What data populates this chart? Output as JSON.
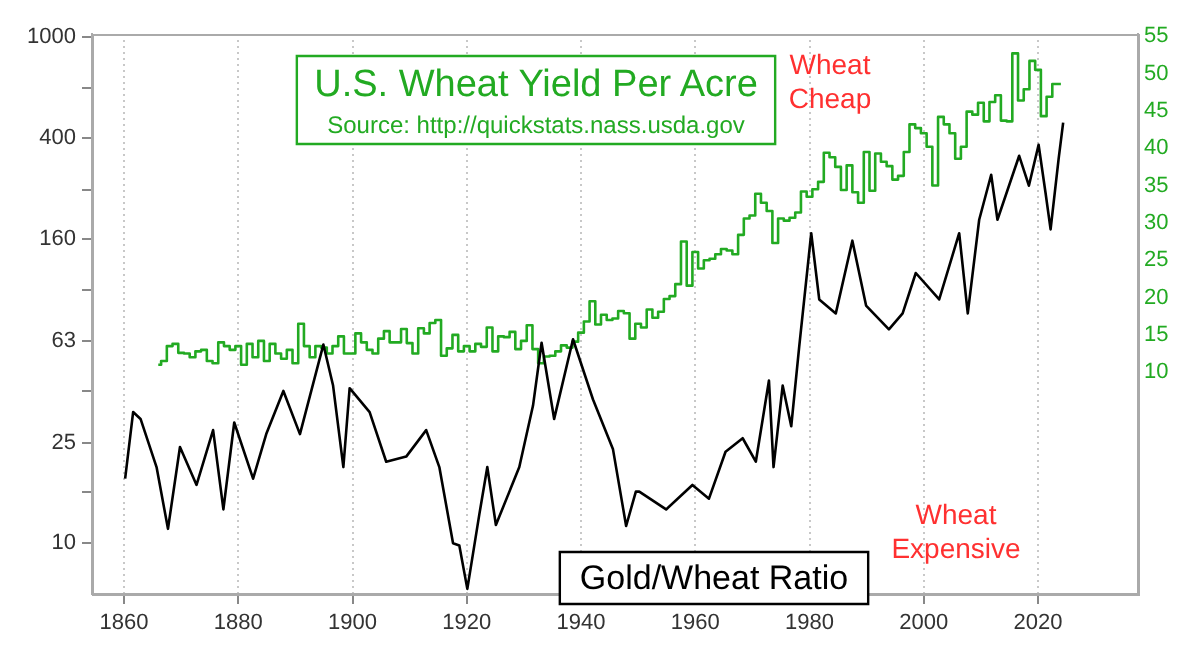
{
  "chart_data": {
    "type": "line",
    "title": "U.S. Wheat Yield Per Acre",
    "subtitle": "Source: http://quickstats.nass.usda.gov",
    "annotations": [
      "Wheat Cheap",
      "Wheat Expensive"
    ],
    "xlim": [
      1854.4,
      2037.5
    ],
    "xticks": [
      1860,
      1880,
      1900,
      1920,
      1940,
      1960,
      1980,
      2000,
      2020
    ],
    "ylim": [
      6.3,
      1030
    ],
    "yticks": [
      10,
      {
        "value": 16,
        "label": null
      },
      25,
      {
        "value": 40,
        "label": null
      },
      63,
      {
        "value": 100,
        "label": null
      },
      160,
      {
        "value": 250,
        "label": null
      },
      400,
      {
        "value": 630,
        "label": null
      },
      1000
    ],
    "log": "y",
    "y2lim": [
      -19.7,
      55.3
    ],
    "y2ticks": [
      10,
      15,
      20,
      25,
      30,
      35,
      40,
      45,
      50,
      55
    ],
    "grid": "x",
    "legend": false,
    "series": [
      {
        "name": "Gold/Wheat Ratio",
        "type": "line",
        "color": "#000000",
        "x": [
          1860.2,
          1861.6,
          1862.9,
          1865.7,
          1867.7,
          1869.8,
          1872.7,
          1875.6,
          1877.4,
          1879.3,
          1882.6,
          1884.9,
          1887.9,
          1890.8,
          1894.9,
          1896.6,
          1898.4,
          1899.5,
          1903,
          1905.9,
          1909.4,
          1912.9,
          1915.2,
          1917.6,
          1918.7,
          1920.1,
          1922.2,
          1923.6,
          1925.1,
          1929.2,
          1931.6,
          1933.1,
          1935.3,
          1938.6,
          1942.1,
          1945.6,
          1947.9,
          1949.6,
          1950.2,
          1954.9,
          1959.5,
          1962.4,
          1965.3,
          1968.3,
          1970.6,
          1972.9,
          1973.7,
          1975.3,
          1976.8,
          1978.2,
          1980.3,
          1981.7,
          1984.6,
          1987.5,
          1989.9,
          1993.9,
          1996.3,
          1998.6,
          2002.7,
          2006.2,
          2007.7,
          2009.7,
          2011.8,
          2012.9,
          2016.7,
          2018.4,
          2020.1,
          2021.3,
          2022.2,
          2023.6,
          2024.4
        ],
        "values": [
          18,
          33,
          31,
          20,
          11.4,
          24,
          17,
          28,
          13.6,
          30,
          18,
          27,
          40,
          27,
          61,
          42,
          20,
          41,
          33,
          21,
          22,
          28,
          20,
          10,
          9.8,
          6.6,
          13,
          20,
          11.8,
          20,
          35,
          62,
          31,
          64,
          37,
          23.5,
          11.7,
          16,
          16,
          13.6,
          17,
          15,
          23,
          26,
          21,
          44,
          20,
          42,
          29,
          60,
          168,
          92,
          81,
          157,
          87,
          70,
          81,
          117,
          92,
          168,
          81,
          190,
          286,
          190,
          340,
          259,
          376,
          244,
          174,
          330,
          460
        ]
      },
      {
        "type": "step",
        "axis": "y2",
        "color": "#22aa22",
        "x": [
          1866,
          1867,
          1868,
          1869,
          1870,
          1871,
          1872,
          1873,
          1874,
          1875,
          1876,
          1877,
          1878,
          1879,
          1880,
          1881,
          1882,
          1883,
          1884,
          1885,
          1886,
          1887,
          1888,
          1889,
          1890,
          1891,
          1892,
          1893,
          1894,
          1895,
          1896,
          1897,
          1898,
          1899,
          1900,
          1901,
          1902,
          1903,
          1904,
          1905,
          1906,
          1907,
          1908,
          1909,
          1910,
          1911,
          1912,
          1913,
          1914,
          1915,
          1916,
          1917,
          1918,
          1919,
          1920,
          1921,
          1922,
          1923,
          1924,
          1925,
          1926,
          1927,
          1928,
          1929,
          1930,
          1931,
          1932,
          1933,
          1934,
          1935,
          1936,
          1937,
          1938,
          1939,
          1940,
          1941,
          1942,
          1943,
          1944,
          1945,
          1946,
          1947,
          1948,
          1949,
          1950,
          1951,
          1952,
          1953,
          1954,
          1955,
          1956,
          1957,
          1958,
          1959,
          1960,
          1961,
          1962,
          1963,
          1964,
          1965,
          1966,
          1967,
          1968,
          1969,
          1970,
          1971,
          1972,
          1973,
          1974,
          1975,
          1976,
          1977,
          1978,
          1979,
          1980,
          1981,
          1982,
          1983,
          1984,
          1985,
          1986,
          1987,
          1988,
          1989,
          1990,
          1991,
          1992,
          1993,
          1994,
          1995,
          1996,
          1997,
          1998,
          1999,
          2000,
          2001,
          2002,
          2003,
          2004,
          2005,
          2006,
          2007,
          2008,
          2009,
          2010,
          2011,
          2012,
          2013,
          2014,
          2015,
          2016,
          2017,
          2018,
          2019,
          2020,
          2021,
          2022,
          2023,
          2024
        ],
        "values": [
          11.0,
          11.5,
          13.5,
          13.8,
          12.6,
          12.5,
          12.0,
          12.8,
          13.0,
          11.5,
          11.2,
          14.0,
          13.5,
          13.0,
          13.5,
          11.0,
          13.8,
          12.0,
          14.2,
          11.5,
          13.8,
          12.5,
          11.8,
          13.0,
          11.2,
          16.5,
          13.5,
          12.0,
          13.5,
          13.3,
          12.5,
          13.5,
          14.8,
          12.5,
          12.5,
          15.2,
          14.0,
          13.0,
          12.5,
          14.5,
          15.5,
          14.0,
          14.0,
          15.8,
          13.9,
          12.5,
          15.9,
          15.2,
          16.6,
          17.0,
          12.2,
          13.2,
          15.0,
          12.8,
          13.5,
          12.8,
          13.8,
          13.4,
          16.0,
          12.8,
          14.8,
          14.7,
          15.4,
          13.1,
          14.2,
          16.3,
          13.1,
          11.2,
          12.1,
          12.2,
          12.8,
          13.6,
          13.3,
          14.1,
          15.3,
          16.8,
          19.5,
          16.4,
          17.7,
          17.0,
          17.2,
          18.2,
          17.9,
          14.5,
          16.5,
          16.0,
          18.4,
          17.3,
          18.1,
          19.8,
          20.2,
          21.8,
          27.5,
          21.6,
          26.1,
          23.9,
          25.0,
          25.2,
          25.8,
          26.5,
          26.3,
          25.8,
          28.4,
          30.6,
          31.0,
          33.9,
          32.7,
          31.6,
          27.3,
          30.6,
          30.3,
          30.7,
          31.4,
          34.2,
          33.5,
          34.5,
          35.5,
          39.4,
          38.8,
          37.5,
          34.4,
          37.7,
          34.1,
          32.7,
          39.5,
          34.3,
          39.3,
          38.2,
          37.6,
          35.8,
          36.3,
          39.5,
          43.2,
          42.7,
          42.0,
          40.2,
          35.0,
          44.2,
          43.2,
          42.0,
          38.6,
          40.2,
          44.9,
          44.5,
          46.1,
          43.6,
          46.2,
          47.1,
          43.7,
          43.6,
          52.7,
          46.4,
          47.9,
          51.7,
          50.5,
          44.3,
          46.9,
          48.6,
          48.6
        ]
      }
    ]
  }
}
